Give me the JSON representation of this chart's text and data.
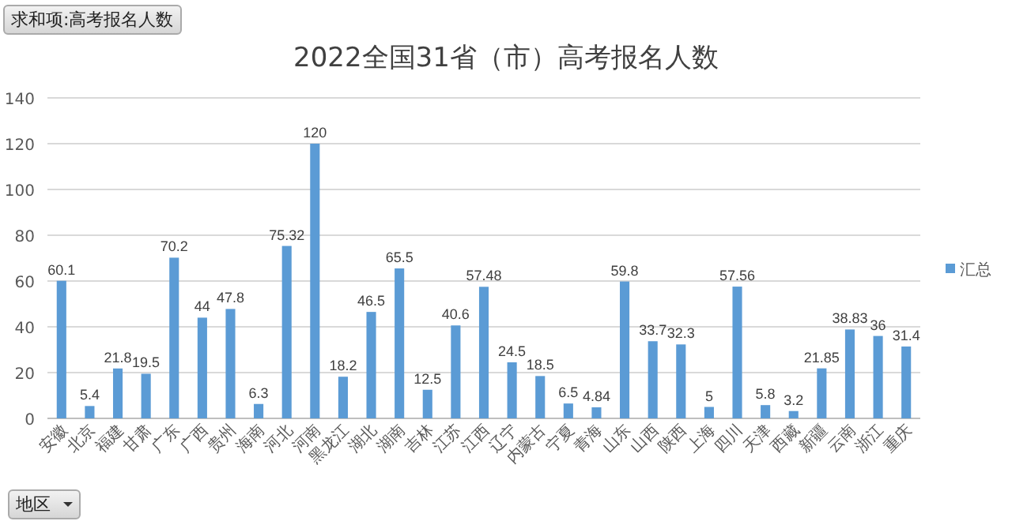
{
  "chart_data": {
    "type": "bar",
    "title": "2022全国31省（市）高考报名人数",
    "categories": [
      "安徽",
      "北京",
      "福建",
      "甘肃",
      "广东",
      "广西",
      "贵州",
      "海南",
      "河北",
      "河南",
      "黑龙江",
      "湖北",
      "湖南",
      "吉林",
      "江苏",
      "江西",
      "辽宁",
      "内蒙古",
      "宁夏",
      "青海",
      "山东",
      "山西",
      "陕西",
      "上海",
      "四川",
      "天津",
      "西藏",
      "新疆",
      "云南",
      "浙江",
      "重庆"
    ],
    "series": [
      {
        "name": "汇总",
        "color": "#5b9bd5",
        "values": [
          60.1,
          5.4,
          21.8,
          19.5,
          70.2,
          44,
          47.8,
          6.3,
          75.32,
          120,
          18.2,
          46.5,
          65.5,
          12.5,
          40.6,
          57.48,
          24.5,
          18.5,
          6.5,
          4.84,
          59.8,
          33.7,
          32.3,
          5,
          57.56,
          5.8,
          3.2,
          21.85,
          38.83,
          36,
          31.4
        ]
      }
    ],
    "ylim": [
      0,
      140
    ],
    "yticks": [
      0,
      20,
      40,
      60,
      80,
      100,
      120,
      140
    ],
    "grid": "y",
    "legend": "right",
    "data_labels": true,
    "annotations": [
      "求和项:高考报名人数",
      "地区"
    ]
  }
}
